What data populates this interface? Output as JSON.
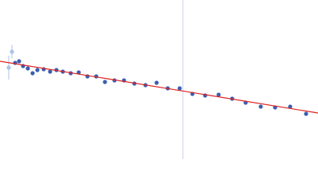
{
  "chart_data": {
    "type": "scatter",
    "xlim": [
      0,
      400
    ],
    "ylim": [
      0,
      200
    ],
    "series": [
      {
        "color": "#a9c4e4",
        "x": [
          11,
          15
        ],
        "values": [
          115,
          135
        ],
        "errors": [
          15,
          8.5
        ]
      },
      {
        "color": "#3a5fb0",
        "x": [
          19,
          24,
          29,
          35,
          41,
          47,
          55,
          63,
          71,
          79,
          89,
          99,
          110,
          121,
          132,
          144,
          156,
          169,
          183,
          197,
          211,
          226,
          242,
          258,
          275,
          292,
          309,
          328,
          346,
          365,
          385
        ],
        "values": [
          121,
          123,
          117,
          114,
          108,
          112,
          113,
          110,
          112,
          110,
          108,
          109,
          104,
          104,
          97,
          99,
          99,
          95,
          93,
          96,
          89,
          89,
          82,
          80,
          81,
          76,
          71,
          66,
          65,
          66,
          57
        ]
      }
    ],
    "fit": {
      "color": "#e02020",
      "x": [
        0,
        400
      ],
      "values": [
        123,
        58
      ]
    },
    "vline": {
      "color": "#c8d0e4",
      "x": 230
    }
  }
}
